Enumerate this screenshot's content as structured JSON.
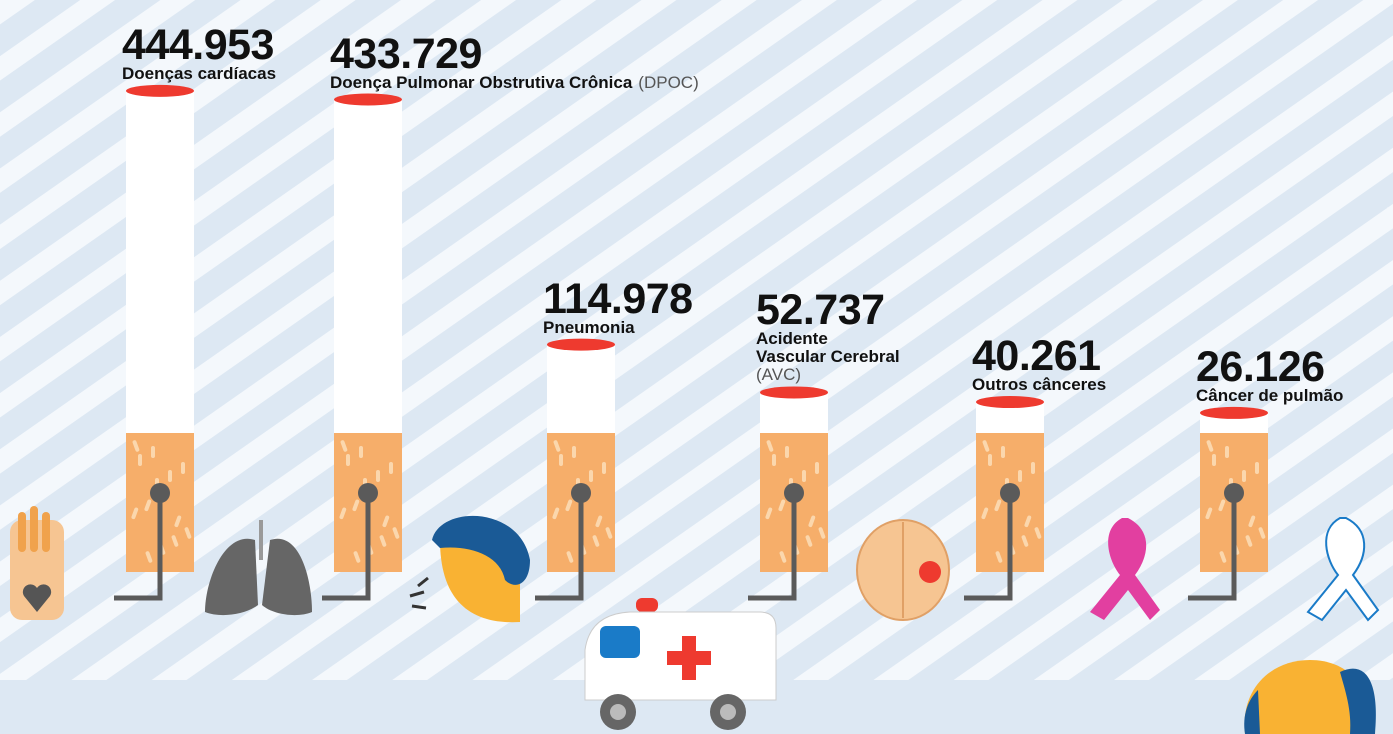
{
  "chart_data": {
    "type": "bar",
    "categories": [
      "Doenças cardíacas",
      "Doença Pulmonar Obstrutiva Crônica",
      "Pneumonia",
      "Acidente\nVascular Cerebral",
      "Outros cânceres",
      "Câncer de pulmão"
    ],
    "abbreviations": [
      null,
      "(DPOC)",
      null,
      "(AVC)",
      null,
      null
    ],
    "values": [
      444953,
      433729,
      114978,
      52737,
      40261,
      26126
    ],
    "value_labels": [
      "444.953",
      "433.729",
      "114.978",
      "52.737",
      "40.261",
      "26.126"
    ],
    "ylim": [
      0,
      450000
    ],
    "color": "#ffffff"
  }
}
